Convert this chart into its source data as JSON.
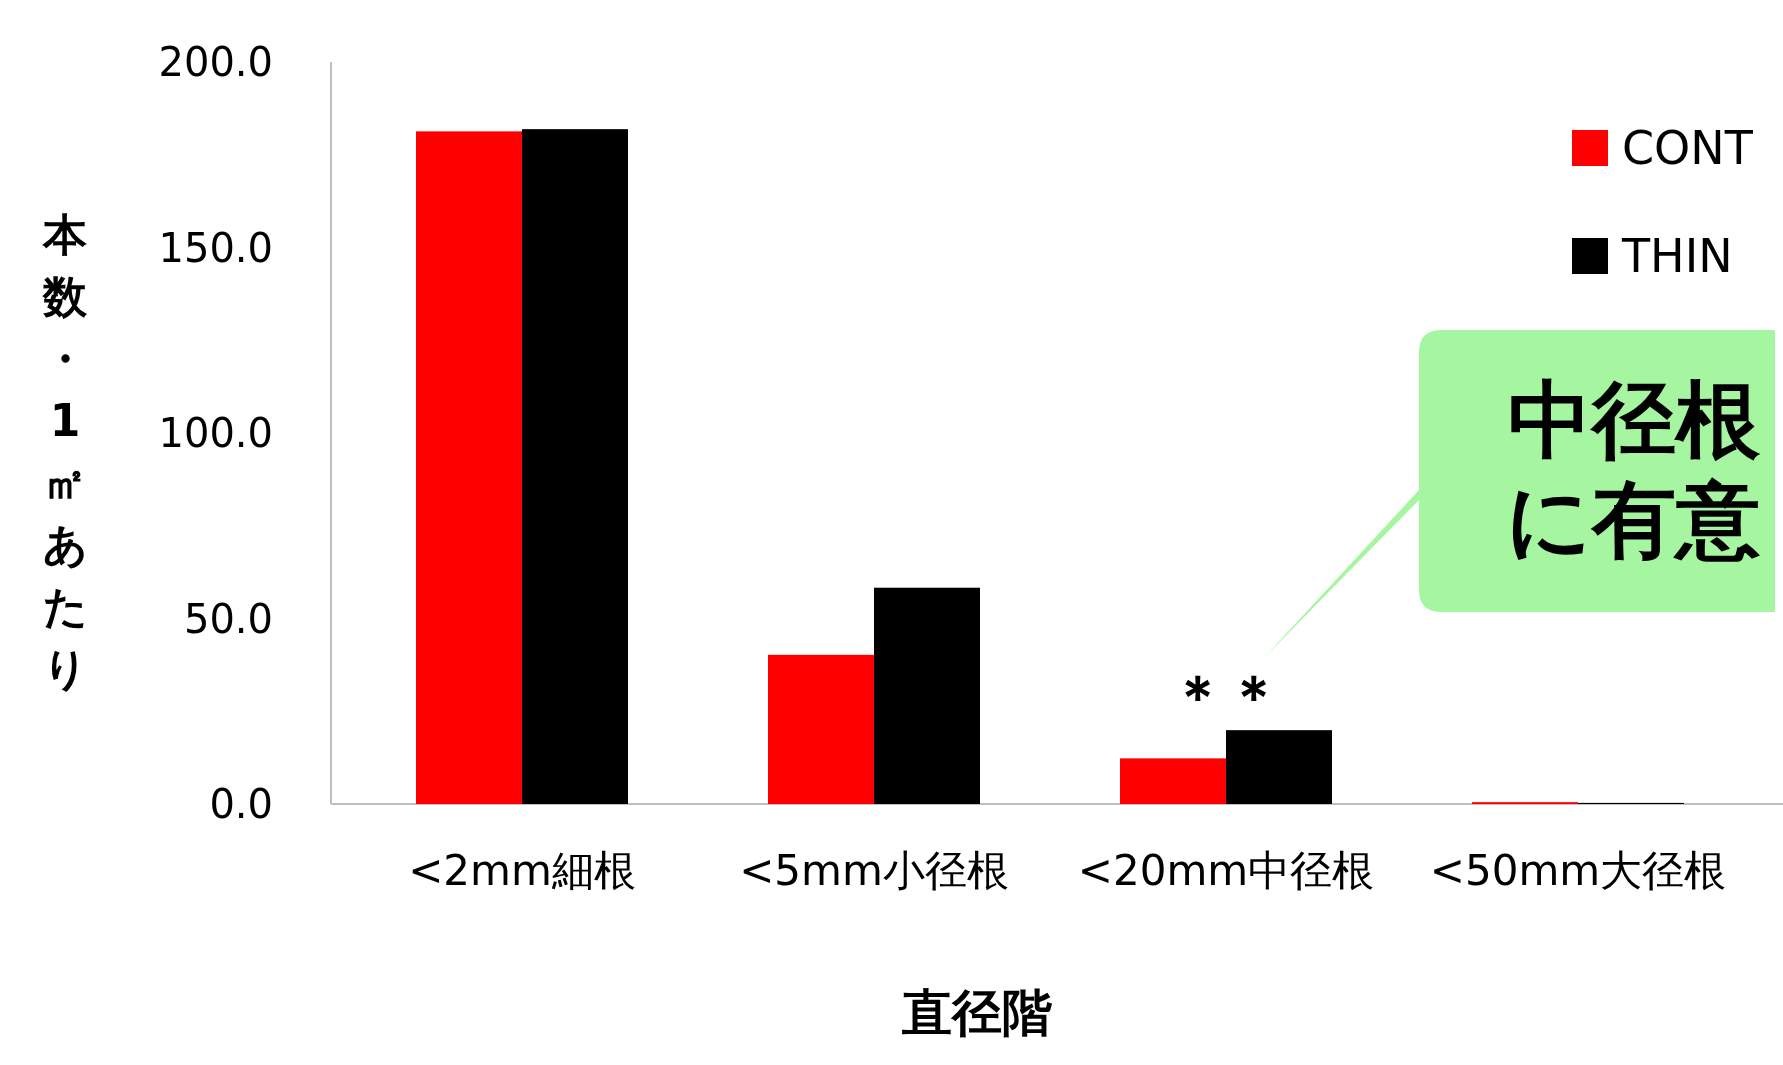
{
  "chart_data": {
    "type": "bar",
    "categories": [
      "<2mm細根",
      "<5mm小径根",
      "<20mm中径根",
      "<50mm大径根"
    ],
    "series": [
      {
        "name": "CONT",
        "color": "#ff0000",
        "values": [
          181.3,
          40.2,
          12.3,
          0.5
        ]
      },
      {
        "name": "THIN",
        "color": "#000000",
        "values": [
          181.9,
          58.3,
          19.9,
          0.3
        ]
      }
    ],
    "xlabel": "直径階",
    "ylabel": "本数・1㎡あたり",
    "ylim": [
      0,
      200
    ],
    "yticks": [
      {
        "value": 0,
        "label": "0.0"
      },
      {
        "value": 50,
        "label": "50.0"
      },
      {
        "value": 100,
        "label": "100.0"
      },
      {
        "value": 150,
        "label": "150.0"
      },
      {
        "value": 200,
        "label": "200.0"
      }
    ],
    "annotations": [
      "＊＊",
      "中径根に有意"
    ],
    "legend": "top right",
    "grid": false
  }
}
